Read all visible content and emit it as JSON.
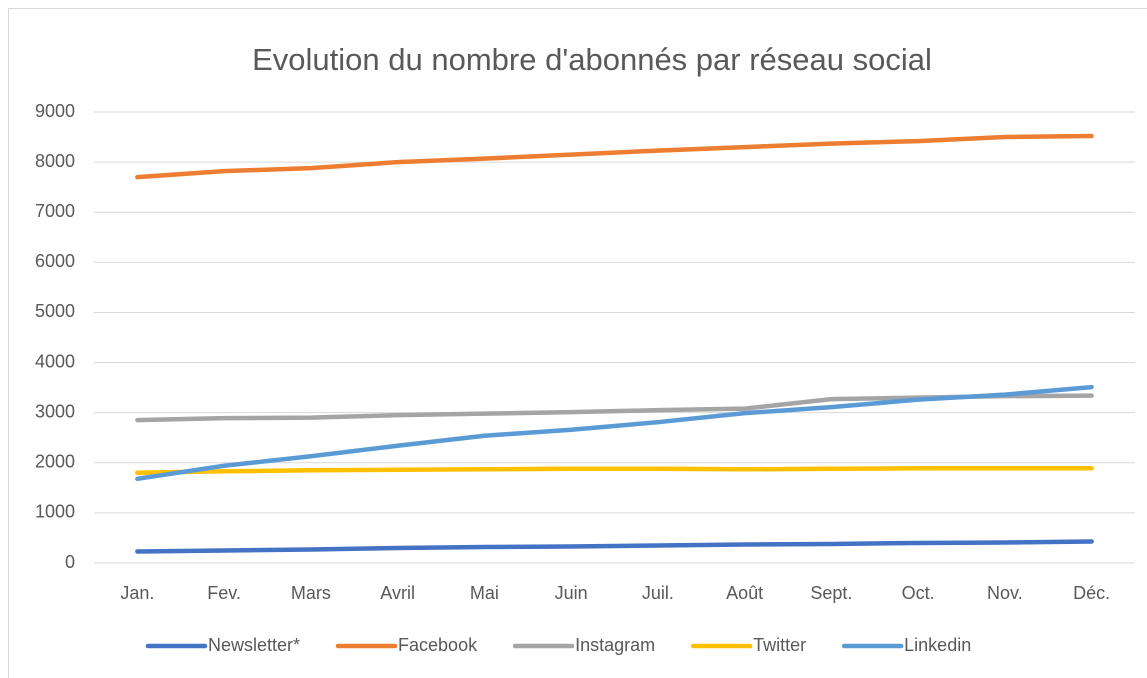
{
  "chart_data": {
    "type": "line",
    "title": "Evolution du nombre d'abonnés par réseau social",
    "categories": [
      "Jan.",
      "Fev.",
      "Mars",
      "Avril",
      "Mai",
      "Juin",
      "Juil.",
      "Août",
      "Sept.",
      "Oct.",
      "Nov.",
      "Déc."
    ],
    "series": [
      {
        "name": "Newsletter*",
        "color": "#4472c4",
        "values": [
          230,
          250,
          270,
          300,
          320,
          330,
          350,
          370,
          380,
          400,
          410,
          430
        ]
      },
      {
        "name": "Facebook",
        "color": "#ed7d31",
        "values": [
          7700,
          7820,
          7880,
          8000,
          8070,
          8150,
          8230,
          8300,
          8370,
          8420,
          8500,
          8520
        ]
      },
      {
        "name": "Instagram",
        "color": "#a5a5a5",
        "values": [
          2850,
          2890,
          2900,
          2950,
          2980,
          3010,
          3050,
          3080,
          3270,
          3300,
          3330,
          3340
        ]
      },
      {
        "name": "Twitter",
        "color": "#ffc000",
        "values": [
          1800,
          1830,
          1850,
          1860,
          1870,
          1880,
          1880,
          1870,
          1880,
          1890,
          1890,
          1890
        ]
      },
      {
        "name": "Linkedin",
        "color": "#5b9bd5",
        "values": [
          1680,
          1940,
          2130,
          2340,
          2540,
          2660,
          2810,
          2990,
          3110,
          3260,
          3360,
          3510
        ]
      }
    ],
    "ylim": [
      0,
      9000
    ],
    "yticks": [
      0,
      1000,
      2000,
      3000,
      4000,
      5000,
      6000,
      7000,
      8000,
      9000
    ],
    "grid": true,
    "legend": "bottom"
  }
}
